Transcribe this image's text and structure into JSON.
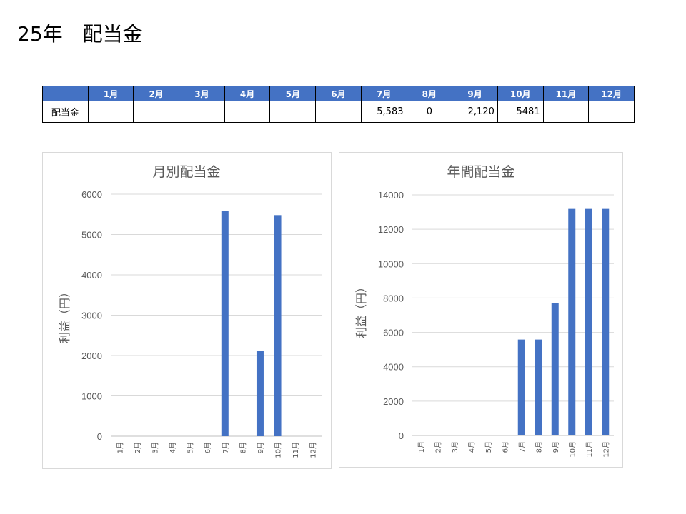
{
  "page": {
    "title": "25年　配当金"
  },
  "table": {
    "headers": [
      "",
      "1月",
      "2月",
      "3月",
      "4月",
      "5月",
      "6月",
      "7月",
      "8月",
      "9月",
      "10月",
      "11月",
      "12月"
    ],
    "row_label": "配当金",
    "cells": [
      "",
      "",
      "",
      "",
      "",
      "",
      "5,583",
      "0",
      "2,120",
      "5481",
      "",
      ""
    ]
  },
  "chart_data": [
    {
      "type": "bar",
      "title": "月別配当金",
      "ylabel": "利益（円）",
      "xlabel": "",
      "categories": [
        "1月",
        "2月",
        "3月",
        "4月",
        "5月",
        "6月",
        "7月",
        "8月",
        "9月",
        "10月",
        "11月",
        "12月"
      ],
      "values": [
        0,
        0,
        0,
        0,
        0,
        0,
        5583,
        0,
        2120,
        5481,
        0,
        0
      ],
      "ylim": [
        0,
        6000
      ],
      "yticks": [
        0,
        1000,
        2000,
        3000,
        4000,
        5000,
        6000
      ],
      "grid": true,
      "color": "#4472c4"
    },
    {
      "type": "bar",
      "title": "年間配当金",
      "ylabel": "利益（円）",
      "xlabel": "",
      "categories": [
        "1月",
        "2月",
        "3月",
        "4月",
        "5月",
        "6月",
        "7月",
        "8月",
        "9月",
        "10月",
        "11月",
        "12月"
      ],
      "values": [
        0,
        0,
        0,
        0,
        0,
        0,
        5583,
        5583,
        7703,
        13184,
        13184,
        13184
      ],
      "ylim": [
        0,
        14000
      ],
      "yticks": [
        0,
        2000,
        4000,
        6000,
        8000,
        10000,
        12000,
        14000
      ],
      "grid": true,
      "color": "#4472c4"
    }
  ]
}
